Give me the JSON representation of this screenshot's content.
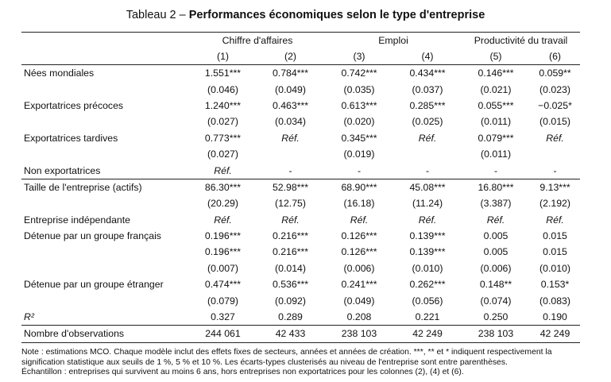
{
  "title": {
    "prefix": "Tableau 2 – ",
    "bold": "Performances économiques selon le type d'entreprise"
  },
  "groups": [
    "Chiffre d'affaires",
    "Emploi",
    "Productivité du travail"
  ],
  "columns": [
    "(1)",
    "(2)",
    "(3)",
    "(4)",
    "(5)",
    "(6)"
  ],
  "rows": [
    {
      "label": "Nées mondiales",
      "v": [
        "1.551***",
        "0.784***",
        "0.742***",
        "0.434***",
        "0.146***",
        "0.059**"
      ]
    },
    {
      "label": "",
      "v": [
        "(0.046)",
        "(0.049)",
        "(0.035)",
        "(0.037)",
        "(0.021)",
        "(0.023)"
      ]
    },
    {
      "label": "Exportatrices précoces",
      "v": [
        "1.240***",
        "0.463***",
        "0.613***",
        "0.285***",
        "0.055***",
        "−0.025*"
      ]
    },
    {
      "label": "",
      "v": [
        "(0.027)",
        "(0.034)",
        "(0.020)",
        "(0.025)",
        "(0.011)",
        "(0.015)"
      ]
    },
    {
      "label": "Exportatrices tardives",
      "v": [
        "0.773***",
        "Réf.",
        "0.345***",
        "Réf.",
        "0.079***",
        "Réf."
      ]
    },
    {
      "label": "",
      "v": [
        "(0.027)",
        "",
        "(0.019)",
        "",
        "(0.011)",
        ""
      ]
    },
    {
      "label": "Non exportatrices",
      "v": [
        "Réf.",
        "-",
        "-",
        "-",
        "-",
        "-"
      ]
    },
    {
      "label": "Taille de l'entreprise (actifs)",
      "v": [
        "86.30***",
        "52.98***",
        "68.90***",
        "45.08***",
        "16.80***",
        "9.13***"
      ]
    },
    {
      "label": "",
      "v": [
        "(20.29)",
        "(12.75)",
        "(16.18)",
        "(11.24)",
        "(3.387)",
        "(2.192)"
      ]
    },
    {
      "label": "Entreprise indépendante",
      "v": [
        "Réf.",
        "Réf.",
        "Réf.",
        "Réf.",
        "Réf.",
        "Réf."
      ]
    },
    {
      "label": "Détenue par un groupe français",
      "v": [
        "0.196***",
        "0.216***",
        "0.126***",
        "0.139***",
        "0.005",
        "0.015"
      ]
    },
    {
      "label": "",
      "v": [
        "0.196***",
        "0.216***",
        "0.126***",
        "0.139***",
        "0.005",
        "0.015"
      ]
    },
    {
      "label": "",
      "v": [
        "(0.007)",
        "(0.014)",
        "(0.006)",
        "(0.010)",
        "(0.006)",
        "(0.010)"
      ]
    },
    {
      "label": "Détenue par un groupe étranger",
      "v": [
        "0.474***",
        "0.536***",
        "0.241***",
        "0.262***",
        "0.148**",
        "0.153*"
      ]
    },
    {
      "label": "",
      "v": [
        "(0.079)",
        "(0.092)",
        "(0.049)",
        "(0.056)",
        "(0.074)",
        "(0.083)"
      ]
    },
    {
      "label": "R²",
      "v": [
        "0.327",
        "0.289",
        "0.208",
        "0.221",
        "0.250",
        "0.190"
      ]
    },
    {
      "label": "Nombre d'observations",
      "v": [
        "244 061",
        "42 433",
        "238 103",
        "42 249",
        "238 103",
        "42 249"
      ]
    }
  ],
  "note": [
    "Note : estimations MCO. Chaque modèle inclut des effets fixes de secteurs, années et années de création. ***, ** et * indiquent respectivement la",
    "signification statistique aux seuils de 1 %, 5 % et 10 %. Les écarts-types clusterisés au niveau de l'entreprise sont entre parenthèses.",
    "Échantillon : entreprises qui survivent au moins 6 ans, hors entreprises non exportatrices pour les colonnes (2), (4) et (6)."
  ]
}
